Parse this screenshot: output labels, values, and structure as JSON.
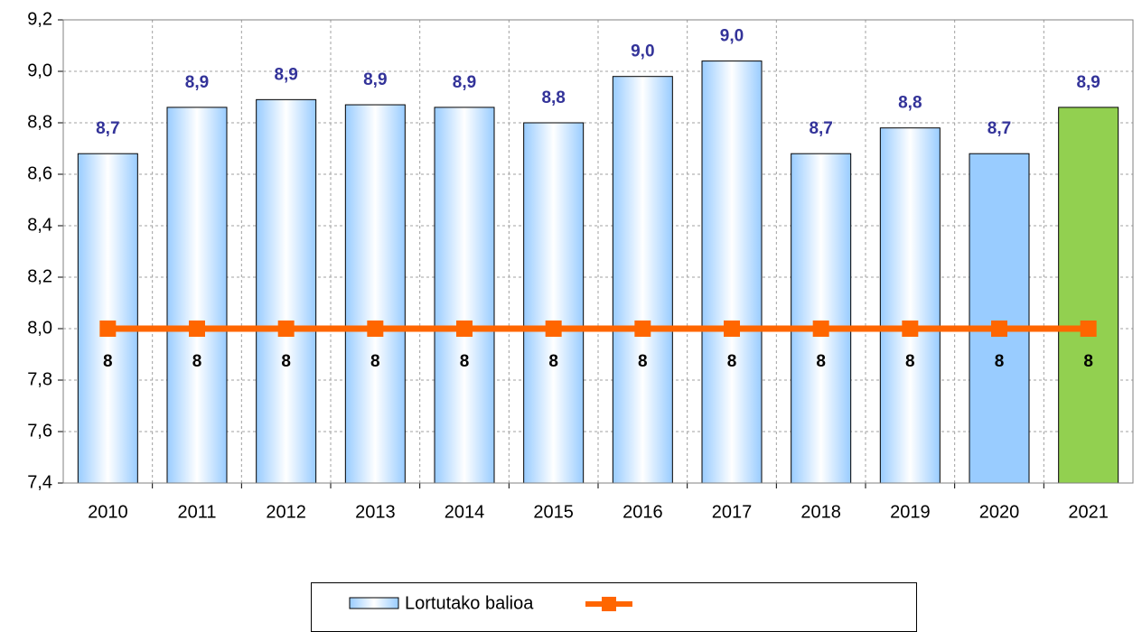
{
  "chart_data": {
    "type": "bar_line",
    "categories": [
      "2010",
      "2011",
      "2012",
      "2013",
      "2014",
      "2015",
      "2016",
      "2017",
      "2018",
      "2019",
      "2020",
      "2021"
    ],
    "series": [
      {
        "name": "Lortutako balioa",
        "type": "bar",
        "colors": [
          "#99ccff",
          "#99ccff",
          "#99ccff",
          "#99ccff",
          "#99ccff",
          "#99ccff",
          "#99ccff",
          "#99ccff",
          "#99ccff",
          "#99ccff",
          "#99ccff",
          "#92d050"
        ],
        "fill_style": [
          "gradient",
          "gradient",
          "gradient",
          "gradient",
          "gradient",
          "gradient",
          "gradient",
          "gradient",
          "gradient",
          "gradient",
          "solid",
          "solid"
        ],
        "values": [
          8.68,
          8.86,
          8.89,
          8.87,
          8.86,
          8.8,
          8.98,
          9.04,
          8.68,
          8.78,
          8.68,
          8.86
        ],
        "value_labels": [
          "8,7",
          "8,9",
          "8,9",
          "8,9",
          "8,9",
          "8,8",
          "9,0",
          "9,0",
          "8,7",
          "8,8",
          "8,7",
          "8,9"
        ]
      },
      {
        "type": "line",
        "color": "#ff6600",
        "values": [
          8,
          8,
          8,
          8,
          8,
          8,
          8,
          8,
          8,
          8,
          8,
          8
        ]
      }
    ],
    "ylim": [
      7.4,
      9.2
    ],
    "yticks": [
      {
        "value": 7.4,
        "label": "7,4"
      },
      {
        "value": 7.6,
        "label": "7,6"
      },
      {
        "value": 7.8,
        "label": "7,8"
      },
      {
        "value": 8.0,
        "label": "8,0"
      },
      {
        "value": 8.2,
        "label": "8,2"
      },
      {
        "value": 8.4,
        "label": "8,4"
      },
      {
        "value": 8.6,
        "label": "8,6"
      },
      {
        "value": 8.8,
        "label": "8,8"
      },
      {
        "value": 9.0,
        "label": "9,0"
      },
      {
        "value": 9.2,
        "label": "9,2"
      }
    ],
    "grid": true,
    "legend": "bottom"
  }
}
